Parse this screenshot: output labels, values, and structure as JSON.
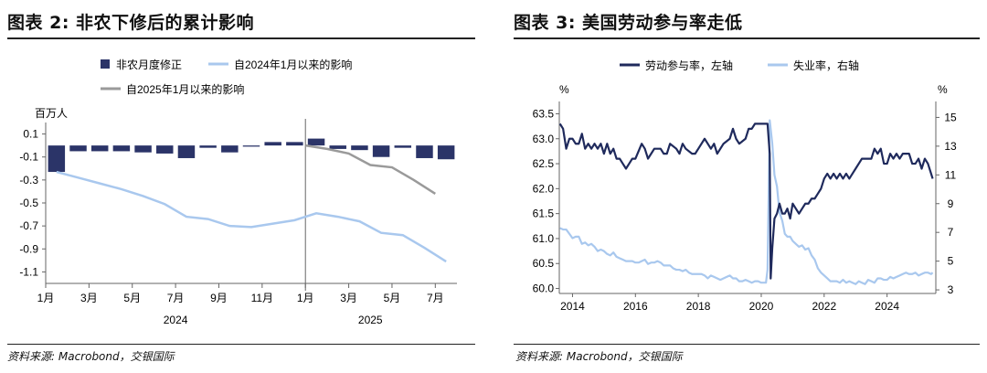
{
  "left": {
    "title": "图表 2: 非农下修后的累计影响",
    "source": "资料来源: Macrobond，交银国际",
    "chart_data": {
      "type": "bar+line",
      "unit_label": "百万人",
      "legend": {
        "bars": "非农月度修正",
        "line_2024": "自2024年1月以来的影响",
        "line_2025": "自2025年1月以来的影响"
      },
      "colors": {
        "bars": "#2b3468",
        "line_2024": "#a9c8ee",
        "line_2025": "#9a9a9a"
      },
      "ylim": [
        -1.2,
        0.2
      ],
      "yticks": [
        "0.1",
        "-0.1",
        "-0.3",
        "-0.5",
        "-0.7",
        "-0.9",
        "-1.1"
      ],
      "ytick_values": [
        0.1,
        -0.1,
        -0.3,
        -0.5,
        -0.7,
        -0.9,
        -1.1
      ],
      "xtick_labels": [
        "1月",
        "3月",
        "5月",
        "7月",
        "9月",
        "11月",
        "1月",
        "3月",
        "5月",
        "7月"
      ],
      "xtick_index": [
        0,
        2,
        4,
        6,
        8,
        10,
        12,
        14,
        16,
        18
      ],
      "year_labels": [
        "2024",
        "2025"
      ],
      "year_index": [
        6,
        15
      ],
      "divider_index": 12,
      "bars": [
        -0.23,
        -0.05,
        -0.05,
        -0.05,
        -0.06,
        -0.07,
        -0.11,
        -0.02,
        -0.06,
        -0.01,
        0.03,
        0.03,
        0.06,
        -0.03,
        -0.04,
        -0.1,
        -0.02,
        -0.11,
        -0.12
      ],
      "line_2024": [
        -0.23,
        -0.28,
        -0.33,
        -0.38,
        -0.44,
        -0.51,
        -0.62,
        -0.64,
        -0.7,
        -0.71,
        -0.68,
        -0.65,
        -0.59,
        -0.62,
        -0.66,
        -0.76,
        -0.78,
        -0.89,
        -1.01
      ],
      "line_2025_start_index": 12,
      "line_2025": [
        0.0,
        -0.03,
        -0.07,
        -0.17,
        -0.19,
        -0.3,
        -0.42
      ]
    }
  },
  "right": {
    "title": "图表 3: 美国劳动参与率走低",
    "source": "资料来源: Macrobond，交银国际",
    "chart_data": {
      "type": "line-dual-axis",
      "legend": {
        "lfpr": "劳动参与率，左轴",
        "unemp": "失业率，右轴"
      },
      "colors": {
        "lfpr": "#1f2a5c",
        "unemp": "#a9c8ee"
      },
      "left_unit": "%",
      "right_unit": "%",
      "left_ylim": [
        59.9,
        63.6
      ],
      "left_ticks": [
        "63.5",
        "63.0",
        "62.5",
        "62.0",
        "61.5",
        "61.0",
        "60.5",
        "60.0"
      ],
      "left_tick_values": [
        63.5,
        63.0,
        62.5,
        62.0,
        61.5,
        61.0,
        60.5,
        60.0
      ],
      "right_ylim": [
        2.75,
        15.6
      ],
      "right_ticks": [
        "15",
        "13",
        "11",
        "9",
        "7",
        "5",
        "3"
      ],
      "right_tick_values": [
        15,
        13,
        11,
        9,
        7,
        5,
        3
      ],
      "xlim": [
        2013.58,
        2025.55
      ],
      "xticks": [
        "2014",
        "2016",
        "2018",
        "2020",
        "2022",
        "2024"
      ],
      "xtick_values": [
        2014,
        2016,
        2018,
        2020,
        2022,
        2024
      ],
      "lfpr": [
        [
          2013.6,
          63.3
        ],
        [
          2013.7,
          63.2
        ],
        [
          2013.8,
          62.8
        ],
        [
          2013.9,
          63.0
        ],
        [
          2014.0,
          63.0
        ],
        [
          2014.1,
          62.9
        ],
        [
          2014.2,
          62.9
        ],
        [
          2014.3,
          63.1
        ],
        [
          2014.4,
          62.8
        ],
        [
          2014.5,
          62.9
        ],
        [
          2014.6,
          62.8
        ],
        [
          2014.7,
          62.9
        ],
        [
          2014.8,
          62.8
        ],
        [
          2014.9,
          62.9
        ],
        [
          2015.0,
          62.7
        ],
        [
          2015.1,
          62.9
        ],
        [
          2015.2,
          62.7
        ],
        [
          2015.3,
          62.8
        ],
        [
          2015.4,
          62.6
        ],
        [
          2015.5,
          62.6
        ],
        [
          2015.6,
          62.5
        ],
        [
          2015.7,
          62.4
        ],
        [
          2015.8,
          62.5
        ],
        [
          2015.9,
          62.6
        ],
        [
          2016.0,
          62.6
        ],
        [
          2016.2,
          62.9
        ],
        [
          2016.3,
          62.8
        ],
        [
          2016.4,
          62.6
        ],
        [
          2016.5,
          62.7
        ],
        [
          2016.6,
          62.8
        ],
        [
          2016.8,
          62.8
        ],
        [
          2016.9,
          62.7
        ],
        [
          2017.0,
          62.7
        ],
        [
          2017.1,
          62.9
        ],
        [
          2017.3,
          62.8
        ],
        [
          2017.4,
          62.7
        ],
        [
          2017.5,
          62.9
        ],
        [
          2017.6,
          62.8
        ],
        [
          2017.8,
          62.7
        ],
        [
          2017.9,
          62.7
        ],
        [
          2018.0,
          62.8
        ],
        [
          2018.2,
          63.0
        ],
        [
          2018.3,
          62.9
        ],
        [
          2018.4,
          62.8
        ],
        [
          2018.5,
          62.9
        ],
        [
          2018.6,
          62.7
        ],
        [
          2018.7,
          62.8
        ],
        [
          2018.8,
          62.9
        ],
        [
          2019.0,
          63.0
        ],
        [
          2019.1,
          63.2
        ],
        [
          2019.2,
          63.0
        ],
        [
          2019.3,
          62.9
        ],
        [
          2019.5,
          63.0
        ],
        [
          2019.6,
          63.2
        ],
        [
          2019.7,
          63.2
        ],
        [
          2019.8,
          63.3
        ],
        [
          2020.0,
          63.3
        ],
        [
          2020.1,
          63.3
        ],
        [
          2020.2,
          63.3
        ],
        [
          2020.27,
          62.7
        ],
        [
          2020.3,
          60.2
        ],
        [
          2020.35,
          60.8
        ],
        [
          2020.42,
          61.4
        ],
        [
          2020.5,
          61.5
        ],
        [
          2020.58,
          61.7
        ],
        [
          2020.67,
          61.5
        ],
        [
          2020.75,
          61.5
        ],
        [
          2020.83,
          61.6
        ],
        [
          2020.92,
          61.4
        ],
        [
          2021.0,
          61.7
        ],
        [
          2021.1,
          61.6
        ],
        [
          2021.2,
          61.5
        ],
        [
          2021.3,
          61.6
        ],
        [
          2021.4,
          61.7
        ],
        [
          2021.5,
          61.7
        ],
        [
          2021.6,
          61.8
        ],
        [
          2021.7,
          61.8
        ],
        [
          2021.8,
          61.9
        ],
        [
          2021.9,
          62.0
        ],
        [
          2022.0,
          62.2
        ],
        [
          2022.1,
          62.3
        ],
        [
          2022.2,
          62.2
        ],
        [
          2022.3,
          62.3
        ],
        [
          2022.4,
          62.2
        ],
        [
          2022.5,
          62.3
        ],
        [
          2022.6,
          62.2
        ],
        [
          2022.7,
          62.3
        ],
        [
          2022.8,
          62.2
        ],
        [
          2022.9,
          62.3
        ],
        [
          2023.0,
          62.4
        ],
        [
          2023.2,
          62.6
        ],
        [
          2023.4,
          62.6
        ],
        [
          2023.5,
          62.6
        ],
        [
          2023.6,
          62.8
        ],
        [
          2023.7,
          62.7
        ],
        [
          2023.8,
          62.8
        ],
        [
          2023.9,
          62.5
        ],
        [
          2024.0,
          62.5
        ],
        [
          2024.1,
          62.7
        ],
        [
          2024.2,
          62.6
        ],
        [
          2024.3,
          62.7
        ],
        [
          2024.4,
          62.6
        ],
        [
          2024.5,
          62.7
        ],
        [
          2024.6,
          62.7
        ],
        [
          2024.7,
          62.7
        ],
        [
          2024.8,
          62.5
        ],
        [
          2024.9,
          62.5
        ],
        [
          2025.0,
          62.6
        ],
        [
          2025.1,
          62.4
        ],
        [
          2025.2,
          62.6
        ],
        [
          2025.3,
          62.5
        ],
        [
          2025.4,
          62.3
        ],
        [
          2025.45,
          62.2
        ]
      ],
      "unemp": [
        [
          2013.6,
          7.3
        ],
        [
          2013.7,
          7.2
        ],
        [
          2013.8,
          7.2
        ],
        [
          2013.9,
          6.9
        ],
        [
          2014.0,
          6.6
        ],
        [
          2014.1,
          6.7
        ],
        [
          2014.2,
          6.7
        ],
        [
          2014.3,
          6.2
        ],
        [
          2014.4,
          6.3
        ],
        [
          2014.5,
          6.1
        ],
        [
          2014.6,
          6.2
        ],
        [
          2014.7,
          6.0
        ],
        [
          2014.8,
          5.7
        ],
        [
          2014.9,
          5.8
        ],
        [
          2015.0,
          5.7
        ],
        [
          2015.1,
          5.5
        ],
        [
          2015.2,
          5.4
        ],
        [
          2015.3,
          5.6
        ],
        [
          2015.4,
          5.3
        ],
        [
          2015.5,
          5.2
        ],
        [
          2015.6,
          5.1
        ],
        [
          2015.7,
          5.0
        ],
        [
          2015.8,
          5.0
        ],
        [
          2015.9,
          5.0
        ],
        [
          2016.0,
          4.9
        ],
        [
          2016.1,
          4.9
        ],
        [
          2016.2,
          5.0
        ],
        [
          2016.3,
          5.1
        ],
        [
          2016.4,
          4.8
        ],
        [
          2016.5,
          4.9
        ],
        [
          2016.6,
          4.9
        ],
        [
          2016.7,
          5.0
        ],
        [
          2016.8,
          4.9
        ],
        [
          2016.9,
          4.7
        ],
        [
          2017.0,
          4.7
        ],
        [
          2017.1,
          4.7
        ],
        [
          2017.2,
          4.5
        ],
        [
          2017.3,
          4.4
        ],
        [
          2017.4,
          4.4
        ],
        [
          2017.5,
          4.3
        ],
        [
          2017.6,
          4.4
        ],
        [
          2017.7,
          4.2
        ],
        [
          2017.8,
          4.1
        ],
        [
          2017.9,
          4.1
        ],
        [
          2018.0,
          4.1
        ],
        [
          2018.1,
          4.1
        ],
        [
          2018.2,
          4.0
        ],
        [
          2018.3,
          3.8
        ],
        [
          2018.4,
          4.0
        ],
        [
          2018.5,
          3.9
        ],
        [
          2018.6,
          3.8
        ],
        [
          2018.7,
          3.7
        ],
        [
          2018.8,
          3.8
        ],
        [
          2018.9,
          3.9
        ],
        [
          2019.0,
          4.0
        ],
        [
          2019.1,
          3.8
        ],
        [
          2019.2,
          3.8
        ],
        [
          2019.3,
          3.6
        ],
        [
          2019.4,
          3.6
        ],
        [
          2019.5,
          3.7
        ],
        [
          2019.6,
          3.6
        ],
        [
          2019.7,
          3.5
        ],
        [
          2019.8,
          3.6
        ],
        [
          2019.9,
          3.6
        ],
        [
          2020.0,
          3.5
        ],
        [
          2020.15,
          3.5
        ],
        [
          2020.2,
          4.4
        ],
        [
          2020.27,
          14.8
        ],
        [
          2020.35,
          13.2
        ],
        [
          2020.42,
          11.0
        ],
        [
          2020.5,
          10.2
        ],
        [
          2020.58,
          8.4
        ],
        [
          2020.67,
          7.8
        ],
        [
          2020.75,
          6.9
        ],
        [
          2020.83,
          6.7
        ],
        [
          2020.92,
          6.7
        ],
        [
          2021.0,
          6.4
        ],
        [
          2021.1,
          6.2
        ],
        [
          2021.2,
          6.0
        ],
        [
          2021.3,
          6.1
        ],
        [
          2021.4,
          5.8
        ],
        [
          2021.5,
          5.9
        ],
        [
          2021.6,
          5.4
        ],
        [
          2021.7,
          5.1
        ],
        [
          2021.8,
          4.5
        ],
        [
          2021.9,
          4.2
        ],
        [
          2022.0,
          4.0
        ],
        [
          2022.1,
          3.8
        ],
        [
          2022.2,
          3.6
        ],
        [
          2022.3,
          3.6
        ],
        [
          2022.4,
          3.6
        ],
        [
          2022.5,
          3.5
        ],
        [
          2022.6,
          3.7
        ],
        [
          2022.7,
          3.5
        ],
        [
          2022.8,
          3.6
        ],
        [
          2022.9,
          3.5
        ],
        [
          2023.0,
          3.4
        ],
        [
          2023.1,
          3.6
        ],
        [
          2023.2,
          3.5
        ],
        [
          2023.3,
          3.4
        ],
        [
          2023.4,
          3.7
        ],
        [
          2023.5,
          3.6
        ],
        [
          2023.6,
          3.5
        ],
        [
          2023.7,
          3.8
        ],
        [
          2023.8,
          3.8
        ],
        [
          2023.9,
          3.7
        ],
        [
          2024.0,
          3.7
        ],
        [
          2024.1,
          3.9
        ],
        [
          2024.2,
          3.8
        ],
        [
          2024.3,
          3.9
        ],
        [
          2024.4,
          4.0
        ],
        [
          2024.5,
          4.1
        ],
        [
          2024.6,
          4.2
        ],
        [
          2024.7,
          4.1
        ],
        [
          2024.8,
          4.1
        ],
        [
          2024.9,
          4.2
        ],
        [
          2025.0,
          4.0
        ],
        [
          2025.1,
          4.1
        ],
        [
          2025.2,
          4.2
        ],
        [
          2025.3,
          4.2
        ],
        [
          2025.4,
          4.1
        ],
        [
          2025.45,
          4.2
        ]
      ]
    }
  }
}
